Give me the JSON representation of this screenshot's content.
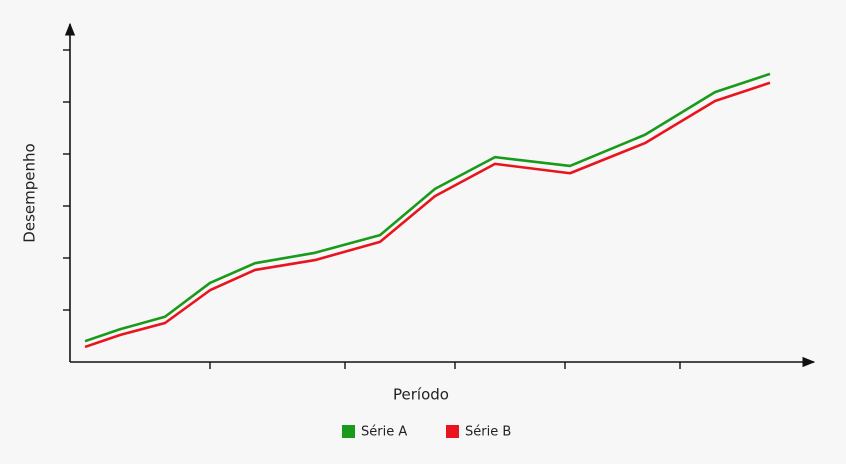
{
  "chart_data": {
    "type": "line",
    "x_label": "Período",
    "y_label": "Desempenho",
    "x": [
      0.3,
      1.0,
      1.9,
      2.8,
      3.7,
      4.9,
      6.2,
      7.3,
      8.5,
      10.0,
      11.5,
      12.9,
      14.0
    ],
    "series": [
      {
        "name": "Série A",
        "color": "#1a9a1a",
        "values": [
          0.4,
          0.63,
          0.87,
          1.52,
          1.9,
          2.1,
          2.44,
          3.33,
          3.94,
          3.77,
          4.37,
          5.19,
          5.54
        ]
      },
      {
        "name": "Série B",
        "color": "#e8141e",
        "values": [
          0.29,
          0.52,
          0.75,
          1.38,
          1.77,
          1.96,
          2.31,
          3.19,
          3.81,
          3.63,
          4.21,
          5.02,
          5.37
        ]
      }
    ],
    "xlim": [
      0,
      14.8
    ],
    "xticks": [
      2.8,
      5.5,
      7.7,
      9.9,
      12.2
    ],
    "ylim": [
      0,
      6.5
    ],
    "yticks": [
      1,
      2,
      3,
      4,
      5,
      6
    ]
  }
}
